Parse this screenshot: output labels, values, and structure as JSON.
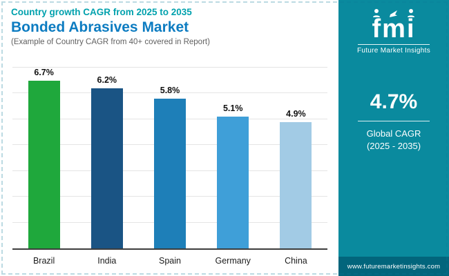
{
  "header": {
    "eyebrow": "Country growth CAGR from 2025 to 2035",
    "title": "Bonded Abrasives Market",
    "subtitle": "(Example of Country CAGR from 40+ covered in Report)"
  },
  "sidebar": {
    "logo_text": "fmi",
    "brand_name": "Future Market Insights",
    "cagr_value": "4.7%",
    "cagr_label_line1": "Global CAGR",
    "cagr_label_line2": "(2025 - 2035)",
    "website": "www.futuremarketinsights.com",
    "colors": {
      "panel": "#0a8a9e",
      "footer": "#02657c",
      "text": "#ffffff"
    }
  },
  "chart_data": {
    "type": "bar",
    "title": "Bonded Abrasives Market - Country growth CAGR from 2025 to 2035",
    "categories": [
      "Brazil",
      "India",
      "Spain",
      "Germany",
      "China"
    ],
    "values": [
      6.7,
      6.2,
      5.8,
      5.1,
      4.9
    ],
    "labels": [
      "6.7%",
      "6.2%",
      "5.8%",
      "5.1%",
      "4.9%"
    ],
    "bar_colors": [
      "#1fa83c",
      "#1a5484",
      "#1e7fb8",
      "#3f9fd8",
      "#a2cbe5"
    ],
    "xlabel": "",
    "ylabel": "",
    "ylim": [
      0,
      7
    ],
    "grid": true,
    "legend": "none"
  }
}
